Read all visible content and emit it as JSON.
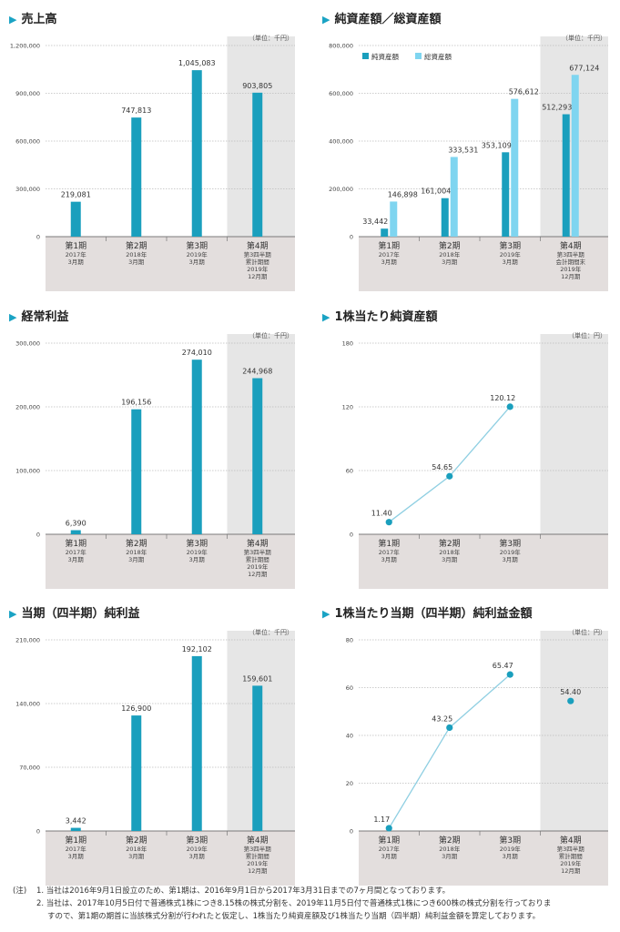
{
  "colors": {
    "bar": "#1a9fbd",
    "bar_light": "#7fd5f0",
    "line": "#8fcfe2",
    "point": "#1a9fbd",
    "band": "#e6e6e6",
    "xbg": "#e3dedd",
    "accent": "#1aa3c4"
  },
  "charts": [
    {
      "id": "sales",
      "title": "売上高",
      "unit": "（単位：千円）",
      "chart_data": {
        "type": "bar",
        "ylim": [
          0,
          1200000
        ],
        "yticks": [
          "0",
          "300,000",
          "600,000",
          "900,000",
          "1,200,000"
        ],
        "series": [
          {
            "values": [
              219081,
              747813,
              1045083,
              903805
            ],
            "labels": [
              "219,081",
              "747,813",
              "1,045,083",
              "903,805"
            ]
          }
        ]
      },
      "categories": [
        {
          "main": "第1期",
          "sub": [
            "2017年",
            "3月期"
          ]
        },
        {
          "main": "第2期",
          "sub": [
            "2018年",
            "3月期"
          ]
        },
        {
          "main": "第3期",
          "sub": [
            "2019年",
            "3月期"
          ]
        },
        {
          "main": "第4期",
          "sub": [
            "第3四半期",
            "累計期間",
            "2019年",
            "12月期"
          ]
        }
      ]
    },
    {
      "id": "assets",
      "title": "純資産額／総資産額",
      "unit": "（単位：千円）",
      "legend": [
        "純資産額",
        "総資産額"
      ],
      "chart_data": {
        "type": "bar",
        "ylim": [
          0,
          800000
        ],
        "yticks": [
          "0",
          "200,000",
          "400,000",
          "600,000",
          "800,000"
        ],
        "series": [
          {
            "name": "純資産額",
            "values": [
              33442,
              161004,
              353109,
              512293
            ],
            "labels": [
              "33,442",
              "161,004",
              "353,109",
              "512,293"
            ]
          },
          {
            "name": "総資産額",
            "values": [
              146898,
              333531,
              576612,
              677124
            ],
            "labels": [
              "146,898",
              "333,531",
              "576,612",
              "677,124"
            ]
          }
        ]
      },
      "categories": [
        {
          "main": "第1期",
          "sub": [
            "2017年",
            "3月期"
          ]
        },
        {
          "main": "第2期",
          "sub": [
            "2018年",
            "3月期"
          ]
        },
        {
          "main": "第3期",
          "sub": [
            "2019年",
            "3月期"
          ]
        },
        {
          "main": "第4期",
          "sub": [
            "第3四半期",
            "会計期間末",
            "2019年",
            "12月期"
          ]
        }
      ]
    },
    {
      "id": "ordinary",
      "title": "経常利益",
      "unit": "（単位：千円）",
      "chart_data": {
        "type": "bar",
        "ylim": [
          0,
          300000
        ],
        "yticks": [
          "0",
          "100,000",
          "200,000",
          "300,000"
        ],
        "series": [
          {
            "values": [
              6390,
              196156,
              274010,
              244968
            ],
            "labels": [
              "6,390",
              "196,156",
              "274,010",
              "244,968"
            ]
          }
        ]
      },
      "categories": [
        {
          "main": "第1期",
          "sub": [
            "2017年",
            "3月期"
          ]
        },
        {
          "main": "第2期",
          "sub": [
            "2018年",
            "3月期"
          ]
        },
        {
          "main": "第3期",
          "sub": [
            "2019年",
            "3月期"
          ]
        },
        {
          "main": "第4期",
          "sub": [
            "第3四半期",
            "累計期間",
            "2019年",
            "12月期"
          ]
        }
      ]
    },
    {
      "id": "bps",
      "title": "1株当たり純資産額",
      "unit": "（単位：円）",
      "chart_data": {
        "type": "line",
        "ylim": [
          0,
          180
        ],
        "yticks": [
          "0",
          "60",
          "120",
          "180"
        ],
        "series": [
          {
            "values": [
              11.4,
              54.65,
              120.12
            ],
            "labels": [
              "11.40",
              "54.65",
              "120.12"
            ]
          }
        ]
      },
      "categories": [
        {
          "main": "第1期",
          "sub": [
            "2017年",
            "3月期"
          ]
        },
        {
          "main": "第2期",
          "sub": [
            "2018年",
            "3月期"
          ]
        },
        {
          "main": "第3期",
          "sub": [
            "2019年",
            "3月期"
          ]
        }
      ]
    },
    {
      "id": "netincome",
      "title": "当期（四半期）純利益",
      "unit": "（単位：千円）",
      "chart_data": {
        "type": "bar",
        "ylim": [
          0,
          210000
        ],
        "yticks": [
          "0",
          "70,000",
          "140,000",
          "210,000"
        ],
        "series": [
          {
            "values": [
              3442,
              126900,
              192102,
              159601
            ],
            "labels": [
              "3,442",
              "126,900",
              "192,102",
              "159,601"
            ]
          }
        ]
      },
      "categories": [
        {
          "main": "第1期",
          "sub": [
            "2017年",
            "3月期"
          ]
        },
        {
          "main": "第2期",
          "sub": [
            "2018年",
            "3月期"
          ]
        },
        {
          "main": "第3期",
          "sub": [
            "2019年",
            "3月期"
          ]
        },
        {
          "main": "第4期",
          "sub": [
            "第3四半期",
            "累計期間",
            "2019年",
            "12月期"
          ]
        }
      ]
    },
    {
      "id": "eps",
      "title": "1株当たり当期（四半期）純利益金額",
      "unit": "（単位：円）",
      "chart_data": {
        "type": "line",
        "ylim": [
          0,
          80
        ],
        "yticks": [
          "0",
          "20",
          "40",
          "60",
          "80"
        ],
        "series": [
          {
            "values": [
              1.17,
              43.25,
              65.47
            ],
            "labels": [
              "1.17",
              "43.25",
              "65.47"
            ]
          }
        ],
        "extra_point": {
          "value": 54.4,
          "label": "54.40"
        }
      },
      "categories": [
        {
          "main": "第1期",
          "sub": [
            "2017年",
            "3月期"
          ]
        },
        {
          "main": "第2期",
          "sub": [
            "2018年",
            "3月期"
          ]
        },
        {
          "main": "第3期",
          "sub": [
            "2019年",
            "3月期"
          ]
        },
        {
          "main": "第4期",
          "sub": [
            "第3四半期",
            "累計期間",
            "2019年",
            "12月期"
          ]
        }
      ]
    }
  ],
  "notes": {
    "prefix": "(注)",
    "line1": "1. 当社は2016年9月1日設立のため、第1期は、2016年9月1日から2017年3月31日までの7ヶ月間となっております。",
    "line2": "2. 当社は、2017年10月5日付で普通株式1株につき8.15株の株式分割を、2019年11月5日付で普通株式1株につき600株の株式分割を行っておりま",
    "line3": "すので、第1期の期首に当該株式分割が行われたと仮定し、1株当たり純資産額及び1株当たり当期（四半期）純利益金額を算定しております。"
  }
}
